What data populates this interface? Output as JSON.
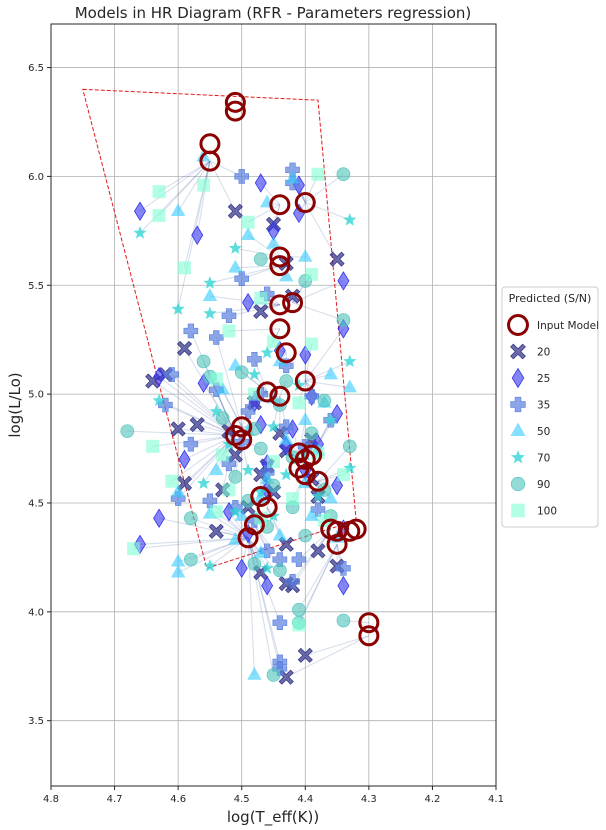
{
  "chart_data": {
    "type": "scatter",
    "title": "Models in HR Diagram (RFR - Parameters regression)",
    "xlabel": "log(T_eff(K))",
    "ylabel": "log(L/Lo)",
    "xlim": [
      4.8,
      4.1
    ],
    "ylim": [
      3.2,
      6.7
    ],
    "x_ticks": [
      "4.8",
      "4.7",
      "4.6",
      "4.5",
      "4.4",
      "4.3",
      "4.2",
      "4.1"
    ],
    "x_tick_values": [
      4.8,
      4.7,
      4.6,
      4.5,
      4.4,
      4.3,
      4.2,
      4.1
    ],
    "y_ticks": [
      "3.5",
      "4.0",
      "4.5",
      "5.0",
      "5.5",
      "6.0",
      "6.5"
    ],
    "y_tick_values": [
      3.5,
      4.0,
      4.5,
      5.0,
      5.5,
      6.0,
      6.5
    ],
    "grid": true,
    "legend_position": "right",
    "legend_title": "Predicted (S/N)",
    "legend": [
      "Input Model",
      "20",
      "25",
      "35",
      "50",
      "70",
      "90",
      "100"
    ],
    "grid_region": {
      "name": "grid boundary",
      "style": "dashed",
      "color": "#e31a1c",
      "polygon": [
        [
          4.75,
          6.4
        ],
        [
          4.38,
          6.35
        ],
        [
          4.32,
          4.42
        ],
        [
          4.555,
          4.2
        ]
      ]
    },
    "series": [
      {
        "name": "Input Model",
        "marker": "circle-open",
        "color": "#8b0000",
        "points": [
          [
            4.51,
            6.34
          ],
          [
            4.51,
            6.3
          ],
          [
            4.55,
            6.15
          ],
          [
            4.55,
            6.07
          ],
          [
            4.44,
            5.87
          ],
          [
            4.4,
            5.88
          ],
          [
            4.44,
            5.63
          ],
          [
            4.44,
            5.59
          ],
          [
            4.44,
            5.41
          ],
          [
            4.42,
            5.42
          ],
          [
            4.44,
            5.3
          ],
          [
            4.43,
            5.19
          ],
          [
            4.4,
            5.06
          ],
          [
            4.46,
            5.01
          ],
          [
            4.44,
            4.99
          ],
          [
            4.5,
            4.85
          ],
          [
            4.51,
            4.81
          ],
          [
            4.5,
            4.79
          ],
          [
            4.41,
            4.73
          ],
          [
            4.4,
            4.7
          ],
          [
            4.39,
            4.72
          ],
          [
            4.41,
            4.66
          ],
          [
            4.4,
            4.63
          ],
          [
            4.38,
            4.6
          ],
          [
            4.47,
            4.53
          ],
          [
            4.46,
            4.48
          ],
          [
            4.48,
            4.4
          ],
          [
            4.49,
            4.34
          ],
          [
            4.36,
            4.38
          ],
          [
            4.35,
            4.37
          ],
          [
            4.33,
            4.37
          ],
          [
            4.32,
            4.38
          ],
          [
            4.35,
            4.31
          ],
          [
            4.3,
            3.95
          ],
          [
            4.3,
            3.89
          ]
        ]
      },
      {
        "name": "20",
        "marker": "x-filled",
        "color": "#3a3a8c",
        "points": [
          [
            4.51,
            5.84
          ],
          [
            4.45,
            5.78
          ],
          [
            4.43,
            5.6
          ],
          [
            4.35,
            5.62
          ],
          [
            4.42,
            5.45
          ],
          [
            4.47,
            5.38
          ],
          [
            4.59,
            5.21
          ],
          [
            4.62,
            5.09
          ],
          [
            4.64,
            5.06
          ],
          [
            4.48,
            4.96
          ],
          [
            4.57,
            4.86
          ],
          [
            4.6,
            4.84
          ],
          [
            4.52,
            4.83
          ],
          [
            4.44,
            4.82
          ],
          [
            4.39,
            4.79
          ],
          [
            4.43,
            4.74
          ],
          [
            4.51,
            4.72
          ],
          [
            4.46,
            4.67
          ],
          [
            4.47,
            4.63
          ],
          [
            4.39,
            4.61
          ],
          [
            4.59,
            4.59
          ],
          [
            4.53,
            4.56
          ],
          [
            4.45,
            4.55
          ],
          [
            4.38,
            4.53
          ],
          [
            4.49,
            4.48
          ],
          [
            4.54,
            4.37
          ],
          [
            4.43,
            4.31
          ],
          [
            4.38,
            4.28
          ],
          [
            4.47,
            4.18
          ],
          [
            4.35,
            4.21
          ],
          [
            4.43,
            4.13
          ],
          [
            4.42,
            4.12
          ],
          [
            4.4,
            3.8
          ],
          [
            4.43,
            3.7
          ]
        ]
      },
      {
        "name": "25",
        "marker": "thin-diamond",
        "color": "#3333ee",
        "points": [
          [
            4.47,
            5.97
          ],
          [
            4.41,
            5.96
          ],
          [
            4.66,
            5.84
          ],
          [
            4.41,
            5.83
          ],
          [
            4.57,
            5.73
          ],
          [
            4.45,
            5.75
          ],
          [
            4.34,
            5.52
          ],
          [
            4.49,
            5.42
          ],
          [
            4.34,
            5.3
          ],
          [
            4.44,
            5.2
          ],
          [
            4.4,
            5.18
          ],
          [
            4.63,
            5.08
          ],
          [
            4.56,
            5.05
          ],
          [
            4.48,
            4.96
          ],
          [
            4.39,
            4.99
          ],
          [
            4.35,
            4.91
          ],
          [
            4.47,
            4.86
          ],
          [
            4.42,
            4.84
          ],
          [
            4.43,
            4.76
          ],
          [
            4.38,
            4.77
          ],
          [
            4.59,
            4.7
          ],
          [
            4.46,
            4.68
          ],
          [
            4.4,
            4.65
          ],
          [
            4.46,
            4.56
          ],
          [
            4.35,
            4.58
          ],
          [
            4.63,
            4.43
          ],
          [
            4.52,
            4.46
          ],
          [
            4.49,
            4.36
          ],
          [
            4.34,
            4.38
          ],
          [
            4.5,
            4.2
          ],
          [
            4.46,
            4.12
          ],
          [
            4.34,
            4.12
          ],
          [
            4.66,
            4.31
          ]
        ]
      },
      {
        "name": "35",
        "marker": "plus-filled",
        "color": "#5a7fe0",
        "points": [
          [
            4.5,
            6.0
          ],
          [
            4.42,
            6.03
          ],
          [
            4.42,
            5.97
          ],
          [
            4.5,
            5.53
          ],
          [
            4.46,
            5.46
          ],
          [
            4.52,
            5.36
          ],
          [
            4.54,
            5.26
          ],
          [
            4.58,
            5.29
          ],
          [
            4.48,
            5.16
          ],
          [
            4.43,
            5.13
          ],
          [
            4.61,
            5.09
          ],
          [
            4.54,
            5.02
          ],
          [
            4.47,
            5.0
          ],
          [
            4.39,
            4.99
          ],
          [
            4.62,
            4.95
          ],
          [
            4.49,
            4.92
          ],
          [
            4.36,
            4.88
          ],
          [
            4.43,
            4.85
          ],
          [
            4.58,
            4.77
          ],
          [
            4.5,
            4.78
          ],
          [
            4.4,
            4.76
          ],
          [
            4.52,
            4.68
          ],
          [
            4.46,
            4.64
          ],
          [
            4.6,
            4.52
          ],
          [
            4.55,
            4.51
          ],
          [
            4.51,
            4.48
          ],
          [
            4.38,
            4.47
          ],
          [
            4.48,
            4.42
          ],
          [
            4.46,
            4.28
          ],
          [
            4.44,
            4.24
          ],
          [
            4.41,
            4.24
          ],
          [
            4.44,
            3.95
          ],
          [
            4.44,
            3.77
          ],
          [
            4.44,
            3.74
          ],
          [
            4.42,
            4.14
          ],
          [
            4.34,
            4.2
          ]
        ]
      },
      {
        "name": "50",
        "marker": "triangle",
        "color": "#33ccff",
        "points": [
          [
            4.56,
            6.09
          ],
          [
            4.42,
            5.99
          ],
          [
            4.6,
            5.84
          ],
          [
            4.46,
            5.88
          ],
          [
            4.4,
            5.63
          ],
          [
            4.49,
            5.73
          ],
          [
            4.45,
            5.69
          ],
          [
            4.51,
            5.58
          ],
          [
            4.43,
            5.54
          ],
          [
            4.55,
            5.45
          ],
          [
            4.51,
            5.13
          ],
          [
            4.44,
            5.15
          ],
          [
            4.36,
            5.09
          ],
          [
            4.53,
            5.02
          ],
          [
            4.45,
            4.98
          ],
          [
            4.37,
            4.96
          ],
          [
            4.33,
            5.03
          ],
          [
            4.4,
            4.88
          ],
          [
            4.49,
            4.83
          ],
          [
            4.43,
            4.79
          ],
          [
            4.38,
            4.74
          ],
          [
            4.54,
            4.65
          ],
          [
            4.46,
            4.61
          ],
          [
            4.4,
            4.59
          ],
          [
            4.6,
            4.55
          ],
          [
            4.47,
            4.52
          ],
          [
            4.36,
            4.52
          ],
          [
            4.55,
            4.45
          ],
          [
            4.5,
            4.44
          ],
          [
            4.39,
            4.44
          ],
          [
            4.51,
            4.33
          ],
          [
            4.44,
            4.35
          ],
          [
            4.35,
            4.34
          ],
          [
            4.6,
            4.23
          ],
          [
            4.6,
            4.18
          ],
          [
            4.47,
            4.27
          ],
          [
            4.48,
            3.71
          ]
        ]
      },
      {
        "name": "70",
        "marker": "star",
        "color": "#33d6d6",
        "points": [
          [
            4.66,
            5.74
          ],
          [
            4.33,
            5.8
          ],
          [
            4.51,
            5.67
          ],
          [
            4.55,
            5.51
          ],
          [
            4.6,
            5.39
          ],
          [
            4.55,
            5.37
          ],
          [
            4.46,
            5.19
          ],
          [
            4.33,
            5.15
          ],
          [
            4.48,
            5.09
          ],
          [
            4.41,
            5.04
          ],
          [
            4.63,
            4.97
          ],
          [
            4.54,
            4.92
          ],
          [
            4.45,
            4.85
          ],
          [
            4.36,
            4.88
          ],
          [
            4.52,
            4.77
          ],
          [
            4.4,
            4.72
          ],
          [
            4.49,
            4.65
          ],
          [
            4.43,
            4.63
          ],
          [
            4.33,
            4.66
          ],
          [
            4.56,
            4.59
          ],
          [
            4.47,
            4.55
          ],
          [
            4.38,
            4.53
          ],
          [
            4.51,
            4.46
          ],
          [
            4.45,
            4.44
          ],
          [
            4.55,
            4.21
          ],
          [
            4.46,
            4.2
          ]
        ]
      },
      {
        "name": "90",
        "marker": "circle",
        "color": "#4cc3bb",
        "points": [
          [
            4.34,
            6.01
          ],
          [
            4.47,
            5.62
          ],
          [
            4.4,
            5.52
          ],
          [
            4.34,
            5.34
          ],
          [
            4.5,
            5.1
          ],
          [
            4.43,
            5.06
          ],
          [
            4.37,
            4.97
          ],
          [
            4.56,
            5.15
          ],
          [
            4.55,
            5.08
          ],
          [
            4.44,
            4.95
          ],
          [
            4.53,
            4.89
          ],
          [
            4.48,
            4.84
          ],
          [
            4.39,
            4.82
          ],
          [
            4.33,
            4.76
          ],
          [
            4.47,
            4.75
          ],
          [
            4.42,
            4.71
          ],
          [
            4.51,
            4.62
          ],
          [
            4.45,
            4.58
          ],
          [
            4.37,
            4.56
          ],
          [
            4.58,
            4.43
          ],
          [
            4.49,
            4.51
          ],
          [
            4.42,
            4.48
          ],
          [
            4.36,
            4.44
          ],
          [
            4.46,
            4.39
          ],
          [
            4.4,
            4.35
          ],
          [
            4.58,
            4.24
          ],
          [
            4.48,
            4.22
          ],
          [
            4.44,
            4.19
          ],
          [
            4.41,
            4.01
          ],
          [
            4.41,
            3.95
          ],
          [
            4.34,
            3.96
          ],
          [
            4.68,
            4.83
          ],
          [
            4.45,
            3.71
          ]
        ]
      },
      {
        "name": "100",
        "marker": "square",
        "color": "#7fffd4",
        "points": [
          [
            4.63,
            5.93
          ],
          [
            4.56,
            5.96
          ],
          [
            4.38,
            6.01
          ],
          [
            4.63,
            5.82
          ],
          [
            4.49,
            5.79
          ],
          [
            4.59,
            5.58
          ],
          [
            4.39,
            5.55
          ],
          [
            4.47,
            5.44
          ],
          [
            4.52,
            5.29
          ],
          [
            4.45,
            5.24
          ],
          [
            4.39,
            5.23
          ],
          [
            4.54,
            5.07
          ],
          [
            4.48,
            5.0
          ],
          [
            4.41,
            4.96
          ],
          [
            4.64,
            4.76
          ],
          [
            4.53,
            4.72
          ],
          [
            4.45,
            4.69
          ],
          [
            4.38,
            4.73
          ],
          [
            4.34,
            4.63
          ],
          [
            4.61,
            4.6
          ],
          [
            4.52,
            4.56
          ],
          [
            4.42,
            4.52
          ],
          [
            4.54,
            4.46
          ],
          [
            4.47,
            4.43
          ],
          [
            4.37,
            4.42
          ],
          [
            4.67,
            4.29
          ],
          [
            4.41,
            3.94
          ]
        ]
      }
    ]
  }
}
